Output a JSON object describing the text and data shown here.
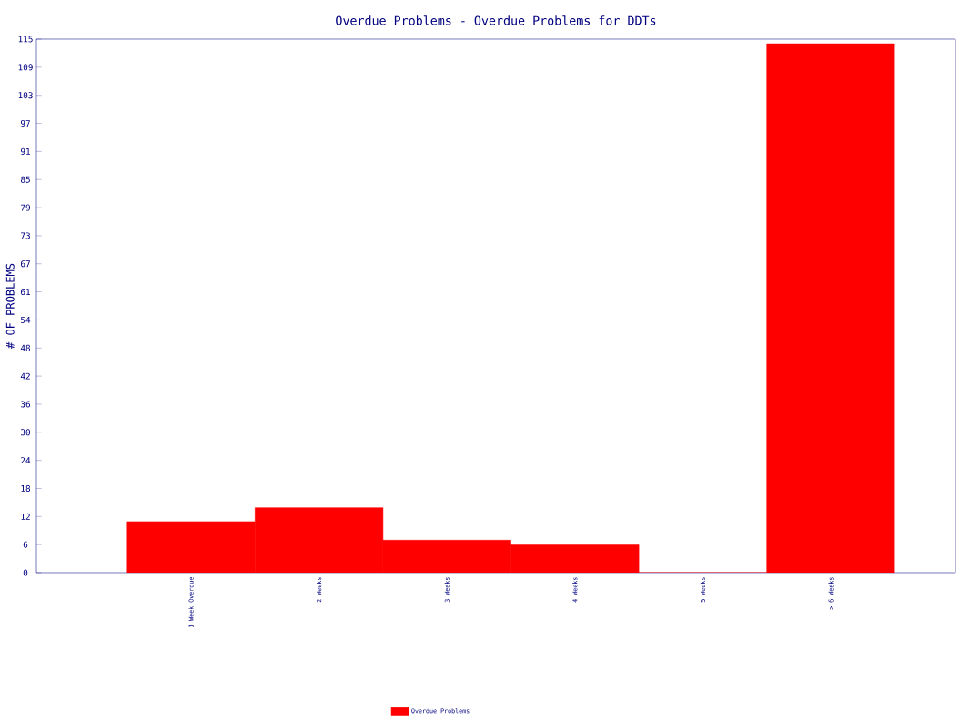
{
  "chart_data": {
    "type": "bar",
    "title": "Overdue Problems - Overdue Problems for DDTs",
    "ylabel": "# OF PROBLEMS",
    "categories": [
      "1 Week Overdue",
      "2 Weeks",
      "3 Weeks",
      "4 Weeks",
      "5 Weeks",
      "> 6 Weeks"
    ],
    "series": [
      {
        "name": "Overdue Problems",
        "color": "#ff0000",
        "values": [
          11,
          14,
          7,
          6,
          0,
          114
        ]
      }
    ],
    "ylim": [
      0,
      115
    ],
    "yticks": [
      {
        "value": 0,
        "label": "0"
      },
      {
        "value": 6.05,
        "label": "6"
      },
      {
        "value": 12.11,
        "label": "12"
      },
      {
        "value": 18.16,
        "label": "18"
      },
      {
        "value": 24.21,
        "label": "24"
      },
      {
        "value": 30.26,
        "label": "30"
      },
      {
        "value": 36.32,
        "label": "36"
      },
      {
        "value": 42.37,
        "label": "42"
      },
      {
        "value": 48.42,
        "label": "48"
      },
      {
        "value": 54.47,
        "label": "54"
      },
      {
        "value": 60.53,
        "label": "61"
      },
      {
        "value": 66.58,
        "label": "67"
      },
      {
        "value": 72.63,
        "label": "73"
      },
      {
        "value": 78.68,
        "label": "79"
      },
      {
        "value": 84.74,
        "label": "85"
      },
      {
        "value": 90.79,
        "label": "91"
      },
      {
        "value": 96.84,
        "label": "97"
      },
      {
        "value": 102.89,
        "label": "103"
      },
      {
        "value": 108.95,
        "label": "109"
      },
      {
        "value": 115,
        "label": "115"
      }
    ],
    "grid": false,
    "legend": "bottom"
  }
}
